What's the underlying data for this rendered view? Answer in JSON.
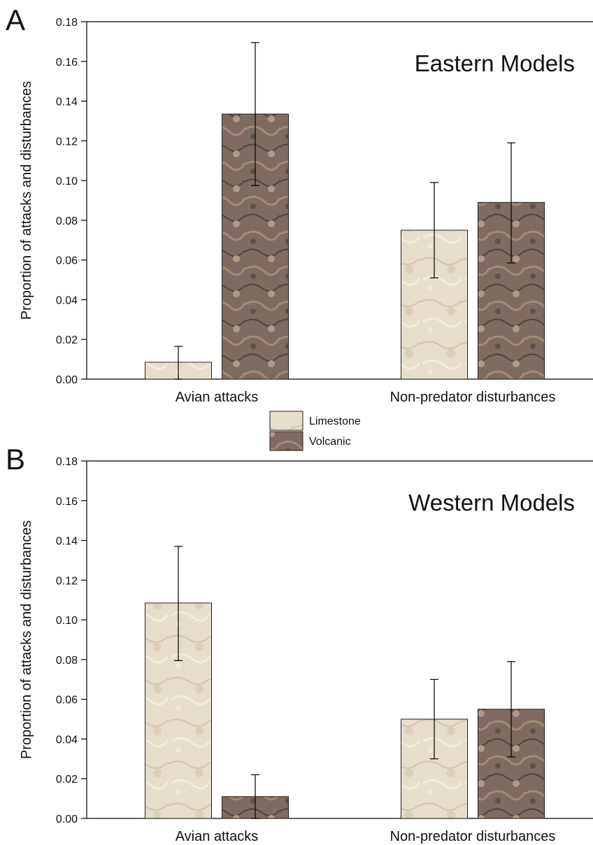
{
  "chart_data": [
    {
      "type": "bar",
      "panel_label": "A",
      "title": "Eastern Models",
      "ylabel": "Proportion of attacks and disturbances",
      "xlabel": "",
      "ylim": [
        0,
        0.18
      ],
      "yticks": [
        "0.00",
        "0.02",
        "0.04",
        "0.06",
        "0.08",
        "0.10",
        "0.12",
        "0.14",
        "0.16",
        "0.18"
      ],
      "categories": [
        "Avian attacks",
        "Non-predator disturbances"
      ],
      "series": [
        {
          "name": "Limestone",
          "values": [
            0.0085,
            0.075
          ],
          "err_low": [
            0.0,
            0.051
          ],
          "err_high": [
            0.0165,
            0.099
          ]
        },
        {
          "name": "Volcanic",
          "values": [
            0.1335,
            0.089
          ],
          "err_low": [
            0.0975,
            0.0585
          ],
          "err_high": [
            0.1695,
            0.119
          ]
        }
      ],
      "grid": false
    },
    {
      "type": "bar",
      "panel_label": "B",
      "title": "Western Models",
      "ylabel": "Proportion of attacks and disturbances",
      "xlabel": "",
      "ylim": [
        0,
        0.18
      ],
      "yticks": [
        "0.00",
        "0.02",
        "0.04",
        "0.06",
        "0.08",
        "0.10",
        "0.12",
        "0.14",
        "0.16",
        "0.18"
      ],
      "categories": [
        "Avian attacks",
        "Non-predator disturbances"
      ],
      "series": [
        {
          "name": "Limestone",
          "values": [
            0.1085,
            0.05
          ],
          "err_low": [
            0.0795,
            0.03
          ],
          "err_high": [
            0.137,
            0.07
          ]
        },
        {
          "name": "Volcanic",
          "values": [
            0.011,
            0.055
          ],
          "err_low": [
            0.0,
            0.031
          ],
          "err_high": [
            0.022,
            0.079
          ]
        }
      ],
      "grid": false
    }
  ],
  "legend": {
    "placement": "between-panels",
    "items": [
      {
        "label": "Limestone",
        "color": "#e6dccb"
      },
      {
        "label": "Volcanic",
        "color": "#7d6a60"
      }
    ]
  },
  "colors": {
    "limestone": "#e6dccb",
    "volcanic": "#7d6a60"
  }
}
